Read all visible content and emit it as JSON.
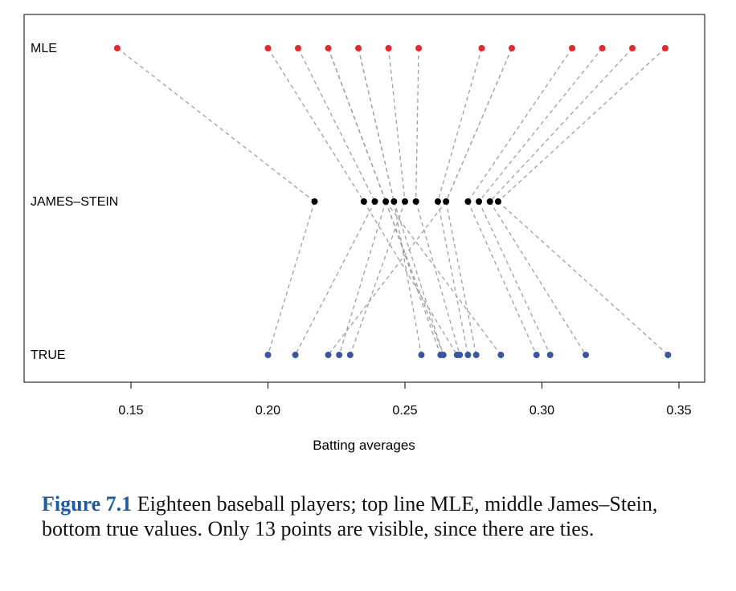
{
  "caption": {
    "label": "Figure 7.1",
    "text": "Eighteen baseball players; top line MLE, middle James–Stein, bottom true values. Only 13 points are visible, since there are ties."
  },
  "chart_data": {
    "type": "scatter",
    "title": "",
    "xlabel": "Batting averages",
    "ylabel": "",
    "xlim": [
      0.12,
      0.355
    ],
    "xticks": [
      0.15,
      0.2,
      0.25,
      0.3,
      0.35
    ],
    "xtick_labels": [
      "0.15",
      "0.20",
      "0.25",
      "0.30",
      "0.35"
    ],
    "rows": [
      {
        "name": "MLE",
        "color": "#e8262c"
      },
      {
        "name": "JAMES–STEIN",
        "color": "#000000"
      },
      {
        "name": "TRUE",
        "color": "#3a55a4"
      }
    ],
    "players": [
      {
        "mle": 0.345,
        "js": 0.284,
        "true": 0.346
      },
      {
        "mle": 0.333,
        "js": 0.281,
        "true": 0.316
      },
      {
        "mle": 0.322,
        "js": 0.277,
        "true": 0.303
      },
      {
        "mle": 0.311,
        "js": 0.273,
        "true": 0.298
      },
      {
        "mle": 0.289,
        "js": 0.265,
        "true": 0.276
      },
      {
        "mle": 0.289,
        "js": 0.265,
        "true": 0.222
      },
      {
        "mle": 0.278,
        "js": 0.262,
        "true": 0.273
      },
      {
        "mle": 0.255,
        "js": 0.254,
        "true": 0.27
      },
      {
        "mle": 0.244,
        "js": 0.25,
        "true": 0.23
      },
      {
        "mle": 0.233,
        "js": 0.246,
        "true": 0.264
      },
      {
        "mle": 0.233,
        "js": 0.246,
        "true": 0.256
      },
      {
        "mle": 0.222,
        "js": 0.243,
        "true": 0.264
      },
      {
        "mle": 0.222,
        "js": 0.243,
        "true": 0.226
      },
      {
        "mle": 0.222,
        "js": 0.243,
        "true": 0.285
      },
      {
        "mle": 0.222,
        "js": 0.243,
        "true": 0.263
      },
      {
        "mle": 0.211,
        "js": 0.239,
        "true": 0.21
      },
      {
        "mle": 0.2,
        "js": 0.235,
        "true": 0.269
      },
      {
        "mle": 0.145,
        "js": 0.217,
        "true": 0.2
      }
    ],
    "line_color": "#a0a0a0",
    "line_style": "dashed",
    "grid": false
  }
}
